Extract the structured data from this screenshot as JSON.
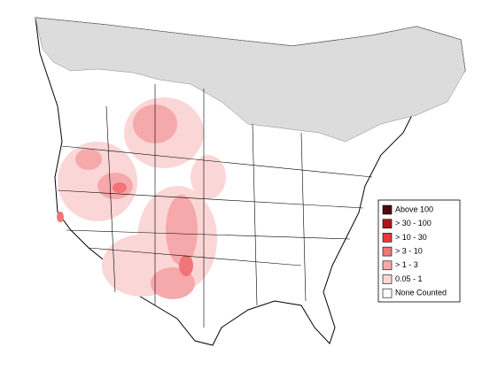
{
  "legend": {
    "items": [
      {
        "label": "Above 100",
        "color": "#4d0a0a"
      },
      {
        "label": "> 30 - 100",
        "color": "#b0141a"
      },
      {
        "label": "> 10 - 30",
        "color": "#e8383c"
      },
      {
        "label": "> 3 - 10",
        "color": "#f07478"
      },
      {
        "label": "> 1 - 3",
        "color": "#f6a9aa"
      },
      {
        "label": "0.05 - 1",
        "color": "#fbd6d6"
      },
      {
        "label": "None Counted",
        "color": "#ffffff"
      }
    ]
  }
}
